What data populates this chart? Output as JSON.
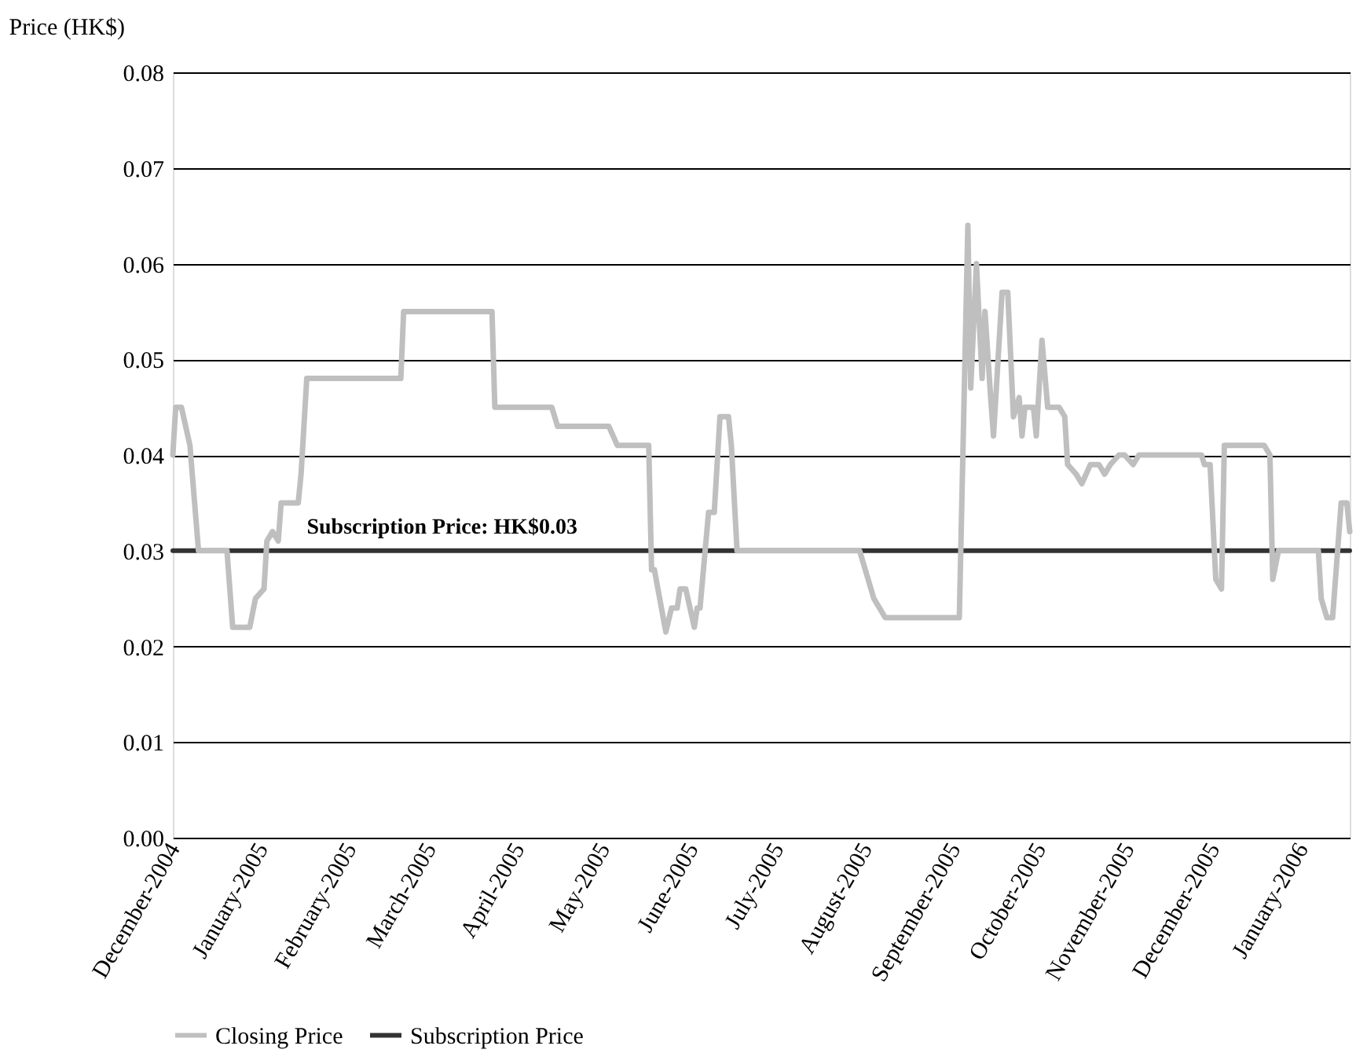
{
  "chart_data": {
    "type": "line",
    "ylabel": "Price (HK$)",
    "xlim": [
      "2004-12-01",
      "2006-01-18"
    ],
    "ylim": [
      0,
      0.08
    ],
    "yticks": [
      {
        "value": 0,
        "label": "0.00"
      },
      0.01,
      0.02,
      0.03,
      0.04,
      0.05,
      0.06,
      0.07,
      0.08
    ],
    "xticks": [
      {
        "value": "2004-12-01",
        "label": "December-2004"
      },
      {
        "value": "2005-01-01",
        "label": "January-2005"
      },
      {
        "value": "2005-02-01",
        "label": "February-2005"
      },
      {
        "value": "2005-03-01",
        "label": "March-2005"
      },
      {
        "value": "2005-04-01",
        "label": "April-2005"
      },
      {
        "value": "2005-05-01",
        "label": "May-2005"
      },
      {
        "value": "2005-06-01",
        "label": "June-2005"
      },
      {
        "value": "2005-07-01",
        "label": "July-2005"
      },
      {
        "value": "2005-08-01",
        "label": "August-2005"
      },
      {
        "value": "2005-09-01",
        "label": "September-2005"
      },
      {
        "value": "2005-10-01",
        "label": "October-2005"
      },
      {
        "value": "2005-11-01",
        "label": "November-2005"
      },
      {
        "value": "2005-12-01",
        "label": "December-2005"
      },
      {
        "value": "2006-01-01",
        "label": "January-2006"
      }
    ],
    "grid": "y",
    "legend": "bottom",
    "marker": "none",
    "line_style": "solid",
    "annotations": [
      {
        "text": "Subscription Price: HK$0.03",
        "x": "2005-01-17",
        "y": 0.03
      }
    ],
    "series": [
      {
        "name": "Closing Price",
        "color": "#bfbfbf",
        "x": [
          "2004-12-01",
          "2004-12-02",
          "2004-12-04",
          "2004-12-07",
          "2004-12-10",
          "2004-12-20",
          "2004-12-22",
          "2004-12-28",
          "2004-12-30",
          "2005-01-02",
          "2005-01-03",
          "2005-01-05",
          "2005-01-07",
          "2005-01-08",
          "2005-01-14",
          "2005-01-15",
          "2005-01-17",
          "2005-02-19",
          "2005-02-20",
          "2005-03-23",
          "2005-03-24",
          "2005-04-13",
          "2005-04-15",
          "2005-05-03",
          "2005-05-06",
          "2005-05-17",
          "2005-05-18",
          "2005-05-19",
          "2005-05-23",
          "2005-05-25",
          "2005-05-27",
          "2005-05-28",
          "2005-05-30",
          "2005-06-02",
          "2005-06-03",
          "2005-06-04",
          "2005-06-07",
          "2005-06-09",
          "2005-06-11",
          "2005-06-14",
          "2005-06-15",
          "2005-06-17",
          "2005-07-30",
          "2005-08-02",
          "2005-08-04",
          "2005-08-08",
          "2005-09-03",
          "2005-09-06",
          "2005-09-07",
          "2005-09-09",
          "2005-09-11",
          "2005-09-12",
          "2005-09-14",
          "2005-09-15",
          "2005-09-18",
          "2005-09-20",
          "2005-09-22",
          "2005-09-24",
          "2005-09-25",
          "2005-09-26",
          "2005-09-29",
          "2005-09-30",
          "2005-10-02",
          "2005-10-04",
          "2005-10-08",
          "2005-10-10",
          "2005-10-11",
          "2005-10-14",
          "2005-10-16",
          "2005-10-19",
          "2005-10-22",
          "2005-10-24",
          "2005-10-26",
          "2005-10-29",
          "2005-10-31",
          "2005-11-03",
          "2005-11-05",
          "2005-11-27",
          "2005-11-28",
          "2005-11-30",
          "2005-12-02",
          "2005-12-04",
          "2005-12-05",
          "2005-12-19",
          "2005-12-21",
          "2005-12-22",
          "2005-12-24",
          "2006-01-07",
          "2006-01-08",
          "2006-01-10",
          "2006-01-12",
          "2006-01-14",
          "2006-01-15",
          "2006-01-17",
          "2006-01-18"
        ],
        "values": [
          0.04,
          0.045,
          0.045,
          0.041,
          0.03,
          0.03,
          0.022,
          0.022,
          0.025,
          0.026,
          0.031,
          0.032,
          0.031,
          0.035,
          0.035,
          0.038,
          0.048,
          0.048,
          0.055,
          0.055,
          0.045,
          0.045,
          0.043,
          0.043,
          0.041,
          0.041,
          0.028,
          0.028,
          0.0215,
          0.024,
          0.024,
          0.026,
          0.026,
          0.022,
          0.024,
          0.024,
          0.034,
          0.034,
          0.044,
          0.044,
          0.041,
          0.03,
          0.03,
          0.027,
          0.025,
          0.023,
          0.023,
          0.064,
          0.047,
          0.06,
          0.048,
          0.055,
          0.046,
          0.042,
          0.057,
          0.057,
          0.044,
          0.046,
          0.042,
          0.045,
          0.045,
          0.042,
          0.052,
          0.045,
          0.045,
          0.044,
          0.039,
          0.038,
          0.037,
          0.039,
          0.039,
          0.038,
          0.039,
          0.04,
          0.04,
          0.039,
          0.04,
          0.04,
          0.039,
          0.039,
          0.027,
          0.026,
          0.041,
          0.041,
          0.04,
          0.027,
          0.03,
          0.03,
          0.025,
          0.023,
          0.023,
          0.031,
          0.035,
          0.035,
          0.032
        ]
      },
      {
        "name": "Subscription Price",
        "color": "#333333",
        "x": [
          "2004-12-01",
          "2006-01-18"
        ],
        "values": [
          0.03,
          0.03
        ]
      }
    ]
  }
}
